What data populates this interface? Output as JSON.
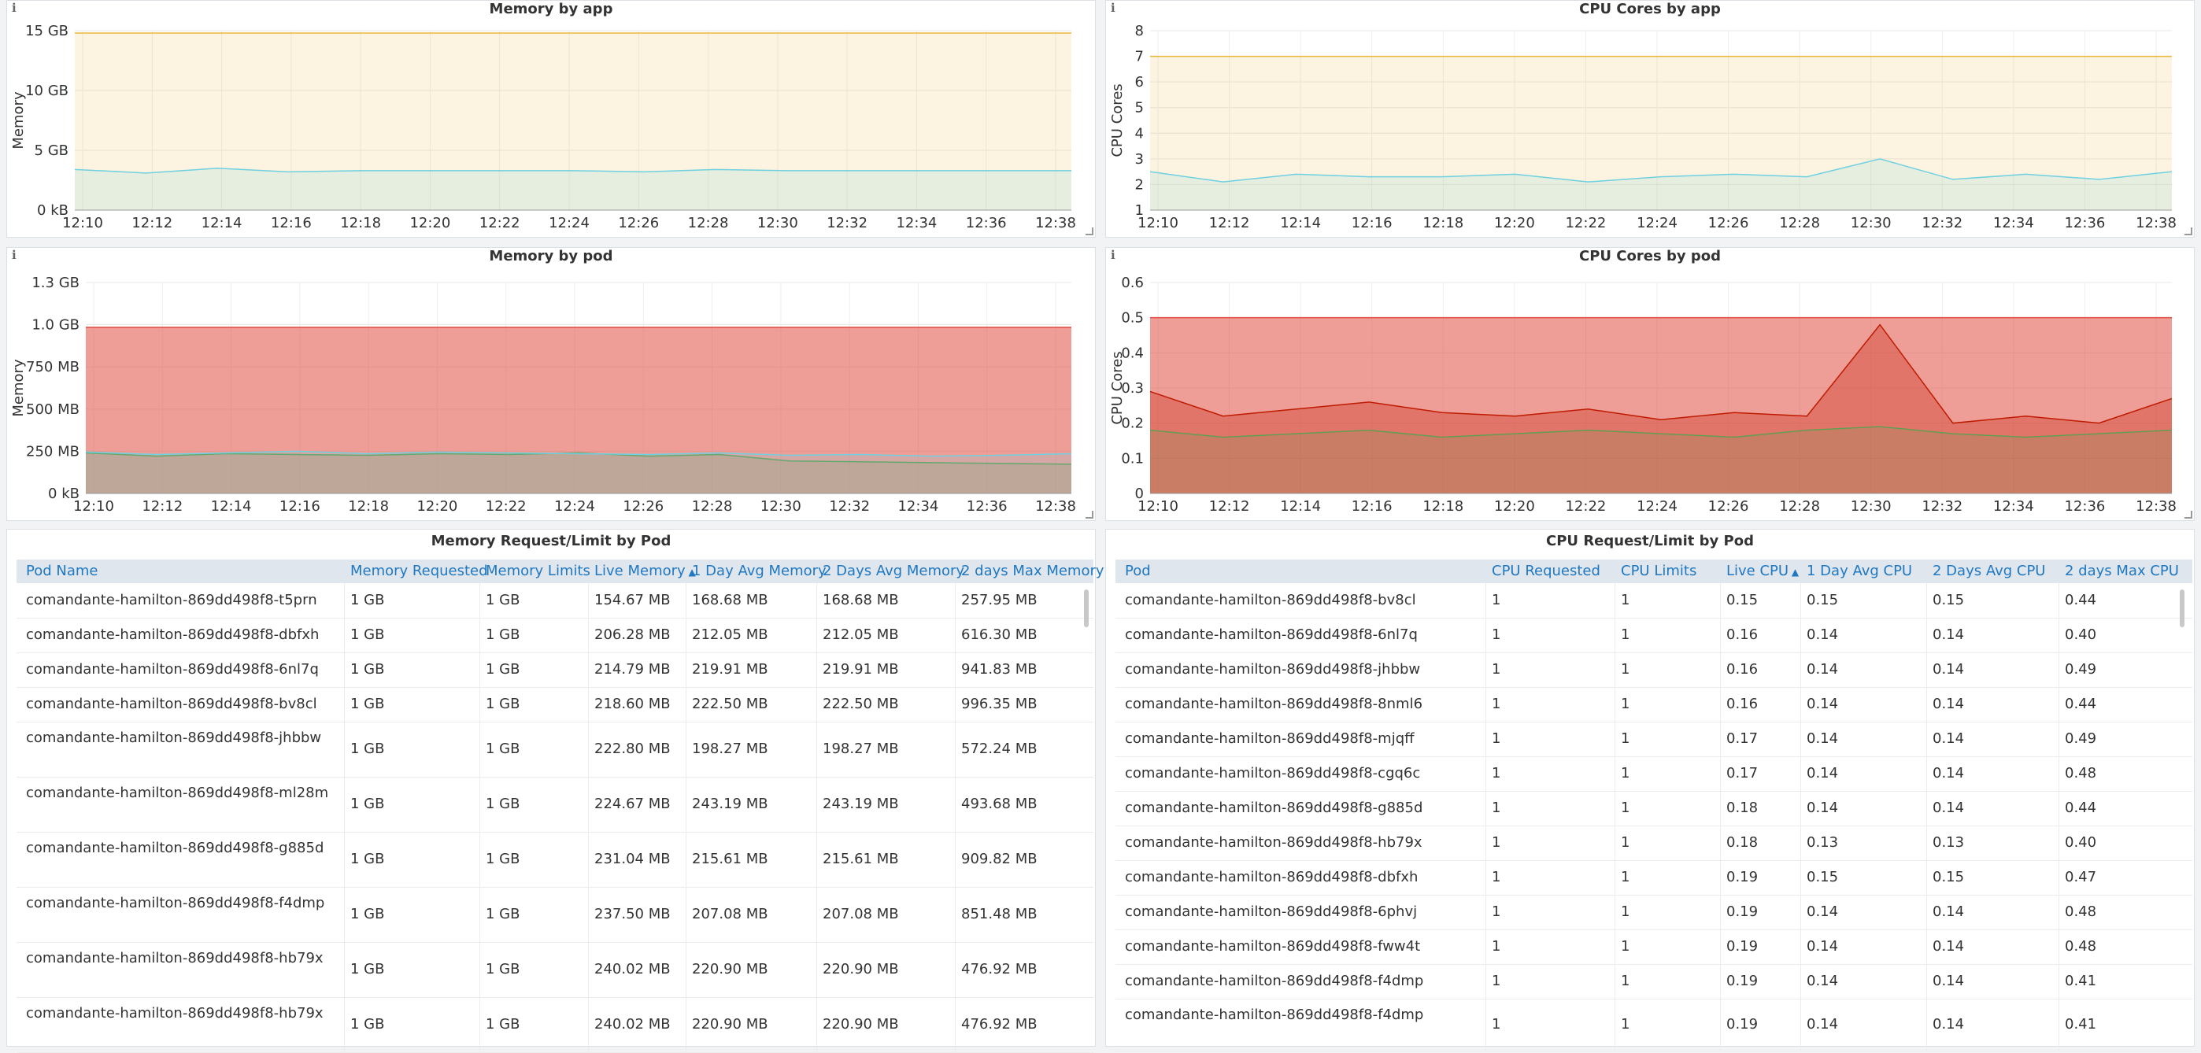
{
  "panels": {
    "memory_by_app": {
      "title": "Memory by app",
      "ylabel": "Memory",
      "y_ticks": [
        "15 GB",
        "10 GB",
        "5 GB",
        "0 kB"
      ],
      "x_ticks": [
        "12:10",
        "12:12",
        "12:14",
        "12:16",
        "12:18",
        "12:20",
        "12:22",
        "12:24",
        "12:26",
        "12:28",
        "12:30",
        "12:32",
        "12:34",
        "12:36",
        "12:38"
      ]
    },
    "cpu_by_app": {
      "title": "CPU Cores by app",
      "ylabel": "CPU Cores",
      "y_ticks": [
        "8",
        "7",
        "6",
        "5",
        "4",
        "3",
        "2",
        "1"
      ],
      "x_ticks": [
        "12:10",
        "12:12",
        "12:14",
        "12:16",
        "12:18",
        "12:20",
        "12:22",
        "12:24",
        "12:26",
        "12:28",
        "12:30",
        "12:32",
        "12:34",
        "12:36",
        "12:38"
      ]
    },
    "memory_by_pod": {
      "title": "Memory by pod",
      "ylabel": "Memory",
      "y_ticks": [
        "1.3 GB",
        "1.0 GB",
        "750 MB",
        "500 MB",
        "250 MB",
        "0 kB"
      ],
      "x_ticks": [
        "12:10",
        "12:12",
        "12:14",
        "12:16",
        "12:18",
        "12:20",
        "12:22",
        "12:24",
        "12:26",
        "12:28",
        "12:30",
        "12:32",
        "12:34",
        "12:36",
        "12:38"
      ]
    },
    "cpu_by_pod": {
      "title": "CPU Cores by pod",
      "ylabel": "CPU Cores",
      "y_ticks": [
        "0.6",
        "0.5",
        "0.4",
        "0.3",
        "0.2",
        "0.1",
        "0"
      ],
      "x_ticks": [
        "12:10",
        "12:12",
        "12:14",
        "12:16",
        "12:18",
        "12:20",
        "12:22",
        "12:24",
        "12:26",
        "12:28",
        "12:30",
        "12:32",
        "12:34",
        "12:36",
        "12:38"
      ]
    }
  },
  "chart_data": [
    {
      "type": "area",
      "title": "Memory by app",
      "ylabel": "Memory",
      "ylim_gb": [
        0,
        15
      ],
      "x": [
        "12:10",
        "12:12",
        "12:14",
        "12:16",
        "12:18",
        "12:20",
        "12:22",
        "12:24",
        "12:26",
        "12:28",
        "12:30",
        "12:32",
        "12:34",
        "12:36",
        "12:38"
      ],
      "series": [
        {
          "color": "#eab839",
          "values_gb": [
            14.8,
            14.8,
            14.8,
            14.8,
            14.8,
            14.8,
            14.8,
            14.8,
            14.8,
            14.8,
            14.8,
            14.8,
            14.8,
            14.8,
            14.8
          ]
        },
        {
          "color": "#6ed0e0",
          "values_gb": [
            3.4,
            3.1,
            3.5,
            3.2,
            3.3,
            3.3,
            3.3,
            3.3,
            3.2,
            3.4,
            3.3,
            3.3,
            3.3,
            3.3,
            3.3
          ]
        }
      ]
    },
    {
      "type": "area",
      "title": "CPU Cores by app",
      "ylabel": "CPU Cores",
      "ylim": [
        1,
        8
      ],
      "x": [
        "12:10",
        "12:12",
        "12:14",
        "12:16",
        "12:18",
        "12:20",
        "12:22",
        "12:24",
        "12:26",
        "12:28",
        "12:30",
        "12:32",
        "12:34",
        "12:36",
        "12:38"
      ],
      "series": [
        {
          "color": "#eab839",
          "values": [
            7,
            7,
            7,
            7,
            7,
            7,
            7,
            7,
            7,
            7,
            7,
            7,
            7,
            7,
            7
          ]
        },
        {
          "color": "#6ed0e0",
          "values": [
            2.5,
            2.1,
            2.4,
            2.3,
            2.3,
            2.4,
            2.1,
            2.3,
            2.4,
            2.3,
            3.0,
            2.2,
            2.4,
            2.2,
            2.5
          ]
        }
      ]
    },
    {
      "type": "area",
      "title": "Memory by pod",
      "ylabel": "Memory",
      "ylim_mb": [
        0,
        1300
      ],
      "x": [
        "12:10",
        "12:12",
        "12:14",
        "12:16",
        "12:18",
        "12:20",
        "12:22",
        "12:24",
        "12:26",
        "12:28",
        "12:30",
        "12:32",
        "12:34",
        "12:36",
        "12:38"
      ],
      "series": [
        {
          "color": "#e24d42",
          "values_mb": [
            1024,
            1024,
            1024,
            1024,
            1024,
            1024,
            1024,
            1024,
            1024,
            1024,
            1024,
            1024,
            1024,
            1024,
            1024
          ]
        },
        {
          "color": "#629e51",
          "values_mb": [
            250,
            230,
            245,
            240,
            235,
            245,
            240,
            250,
            230,
            240,
            200,
            195,
            190,
            185,
            180
          ]
        },
        {
          "color": "#6ed0e0",
          "values_mb": [
            255,
            240,
            250,
            260,
            245,
            255,
            250,
            245,
            240,
            250,
            235,
            240,
            230,
            235,
            245
          ]
        }
      ]
    },
    {
      "type": "area",
      "title": "CPU Cores by pod",
      "ylabel": "CPU Cores",
      "ylim": [
        0,
        0.6
      ],
      "x": [
        "12:10",
        "12:12",
        "12:14",
        "12:16",
        "12:18",
        "12:20",
        "12:22",
        "12:24",
        "12:26",
        "12:28",
        "12:30",
        "12:32",
        "12:34",
        "12:36",
        "12:38"
      ],
      "series": [
        {
          "color": "#e24d42",
          "values": [
            0.5,
            0.5,
            0.5,
            0.5,
            0.5,
            0.5,
            0.5,
            0.5,
            0.5,
            0.5,
            0.5,
            0.5,
            0.5,
            0.5,
            0.5
          ]
        },
        {
          "color": "#bf1b00",
          "values": [
            0.29,
            0.22,
            0.24,
            0.26,
            0.23,
            0.22,
            0.24,
            0.21,
            0.23,
            0.22,
            0.48,
            0.2,
            0.22,
            0.2,
            0.27
          ]
        },
        {
          "color": "#629e51",
          "values": [
            0.18,
            0.16,
            0.17,
            0.18,
            0.16,
            0.17,
            0.18,
            0.17,
            0.16,
            0.18,
            0.19,
            0.17,
            0.16,
            0.17,
            0.18
          ]
        }
      ]
    }
  ],
  "memory_table": {
    "title": "Memory Request/Limit by Pod",
    "columns": [
      "Pod Name",
      "Memory Requested",
      "Memory Limits",
      "Live Memory",
      "1 Day Avg Memory",
      "2 Days Avg Memory",
      "2 days Max Memory"
    ],
    "sort_arrow": "▲",
    "rows": [
      [
        "comandante-hamilton-869dd498f8-t5prn",
        "1 GB",
        "1 GB",
        "154.67 MB",
        "168.68 MB",
        "168.68 MB",
        "257.95 MB"
      ],
      [
        "comandante-hamilton-869dd498f8-dbfxh",
        "1 GB",
        "1 GB",
        "206.28 MB",
        "212.05 MB",
        "212.05 MB",
        "616.30 MB"
      ],
      [
        "comandante-hamilton-869dd498f8-6nl7q",
        "1 GB",
        "1 GB",
        "214.79 MB",
        "219.91 MB",
        "219.91 MB",
        "941.83 MB"
      ],
      [
        "comandante-hamilton-869dd498f8-bv8cl",
        "1 GB",
        "1 GB",
        "218.60 MB",
        "222.50 MB",
        "222.50 MB",
        "996.35 MB"
      ],
      [
        "comandante-hamilton-869dd498f8-jhbbw",
        "1 GB",
        "1 GB",
        "222.80 MB",
        "198.27 MB",
        "198.27 MB",
        "572.24 MB"
      ],
      [
        "comandante-hamilton-869dd498f8-ml28m",
        "1 GB",
        "1 GB",
        "224.67 MB",
        "243.19 MB",
        "243.19 MB",
        "493.68 MB"
      ],
      [
        "comandante-hamilton-869dd498f8-g885d",
        "1 GB",
        "1 GB",
        "231.04 MB",
        "215.61 MB",
        "215.61 MB",
        "909.82 MB"
      ],
      [
        "comandante-hamilton-869dd498f8-f4dmp",
        "1 GB",
        "1 GB",
        "237.50 MB",
        "207.08 MB",
        "207.08 MB",
        "851.48 MB"
      ],
      [
        "comandante-hamilton-869dd498f8-hb79x",
        "1 GB",
        "1 GB",
        "240.02 MB",
        "220.90 MB",
        "220.90 MB",
        "476.92 MB"
      ],
      [
        "comandante-hamilton-869dd498f8-hb79x",
        "1 GB",
        "1 GB",
        "240.02 MB",
        "220.90 MB",
        "220.90 MB",
        "476.92 MB"
      ]
    ]
  },
  "cpu_table": {
    "title": "CPU Request/Limit by Pod",
    "columns": [
      "Pod",
      "CPU Requested",
      "CPU Limits",
      "Live CPU",
      "1 Day Avg CPU",
      "2 Days Avg CPU",
      "2 days Max CPU"
    ],
    "sort_arrow": "▲",
    "rows": [
      [
        "comandante-hamilton-869dd498f8-bv8cl",
        "1",
        "1",
        "0.15",
        "0.15",
        "0.15",
        "0.44"
      ],
      [
        "comandante-hamilton-869dd498f8-6nl7q",
        "1",
        "1",
        "0.16",
        "0.14",
        "0.14",
        "0.40"
      ],
      [
        "comandante-hamilton-869dd498f8-jhbbw",
        "1",
        "1",
        "0.16",
        "0.14",
        "0.14",
        "0.49"
      ],
      [
        "comandante-hamilton-869dd498f8-8nml6",
        "1",
        "1",
        "0.16",
        "0.14",
        "0.14",
        "0.44"
      ],
      [
        "comandante-hamilton-869dd498f8-mjqff",
        "1",
        "1",
        "0.17",
        "0.14",
        "0.14",
        "0.49"
      ],
      [
        "comandante-hamilton-869dd498f8-cgq6c",
        "1",
        "1",
        "0.17",
        "0.14",
        "0.14",
        "0.48"
      ],
      [
        "comandante-hamilton-869dd498f8-g885d",
        "1",
        "1",
        "0.18",
        "0.14",
        "0.14",
        "0.44"
      ],
      [
        "comandante-hamilton-869dd498f8-hb79x",
        "1",
        "1",
        "0.18",
        "0.13",
        "0.13",
        "0.40"
      ],
      [
        "comandante-hamilton-869dd498f8-dbfxh",
        "1",
        "1",
        "0.19",
        "0.15",
        "0.15",
        "0.47"
      ],
      [
        "comandante-hamilton-869dd498f8-6phvj",
        "1",
        "1",
        "0.19",
        "0.14",
        "0.14",
        "0.48"
      ],
      [
        "comandante-hamilton-869dd498f8-fww4t",
        "1",
        "1",
        "0.19",
        "0.14",
        "0.14",
        "0.48"
      ],
      [
        "comandante-hamilton-869dd498f8-f4dmp",
        "1",
        "1",
        "0.19",
        "0.14",
        "0.14",
        "0.41"
      ],
      [
        "comandante-hamilton-869dd498f8-f4dmp",
        "1",
        "1",
        "0.19",
        "0.14",
        "0.14",
        "0.41"
      ]
    ]
  },
  "info_icon": "i"
}
